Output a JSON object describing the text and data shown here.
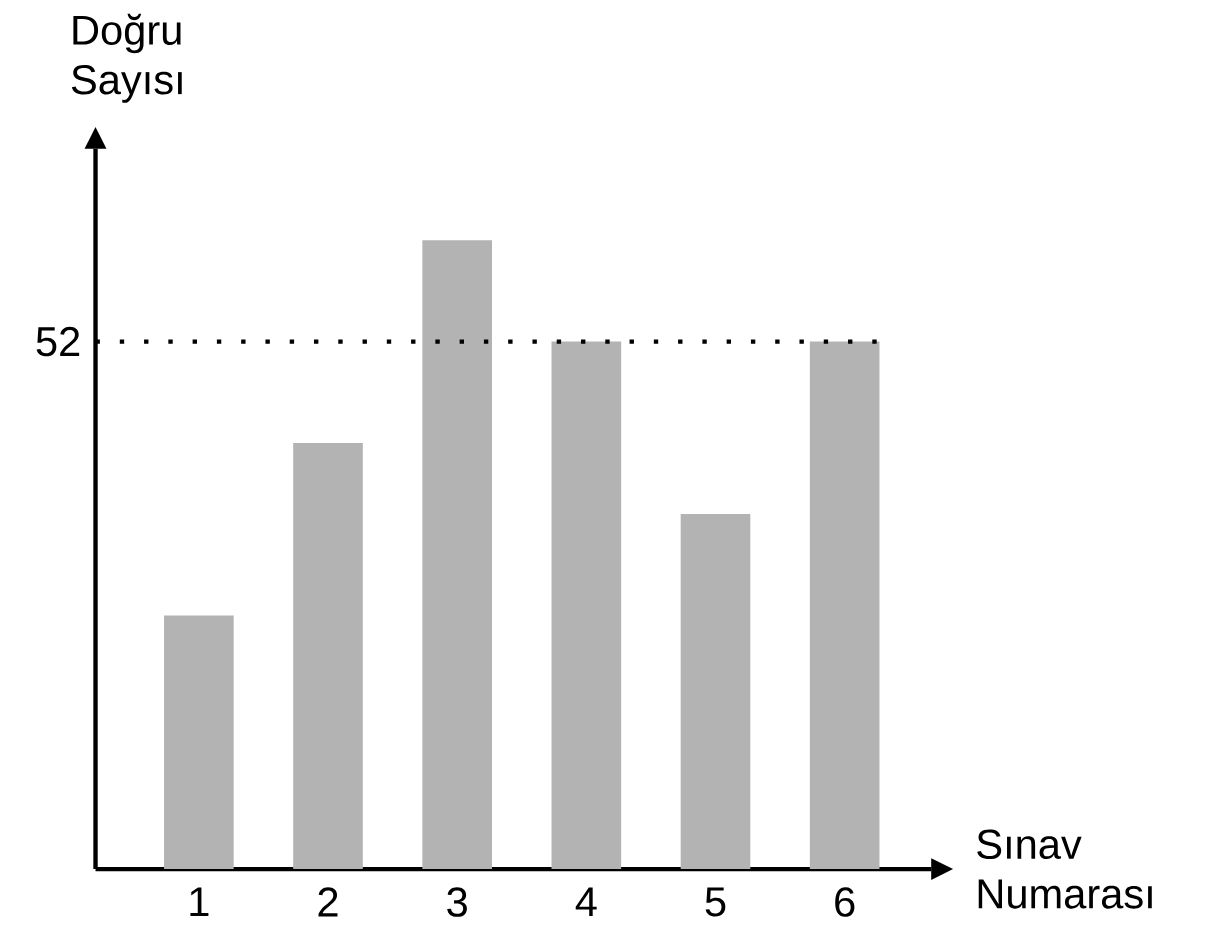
{
  "chart_data": {
    "type": "bar",
    "xlabel": "Sınav Numarası",
    "ylabel": "Doğru Sayısı",
    "categories": [
      "1",
      "2",
      "3",
      "4",
      "5",
      "6"
    ],
    "values": [
      25,
      42,
      62,
      52,
      35,
      52
    ],
    "color": "#b2b3b2",
    "ylim": [
      0,
      71
    ],
    "yticks": [
      52
    ],
    "ref_lines": [
      {
        "axis": "y",
        "value": 52,
        "line_style": "dotted"
      }
    ]
  }
}
